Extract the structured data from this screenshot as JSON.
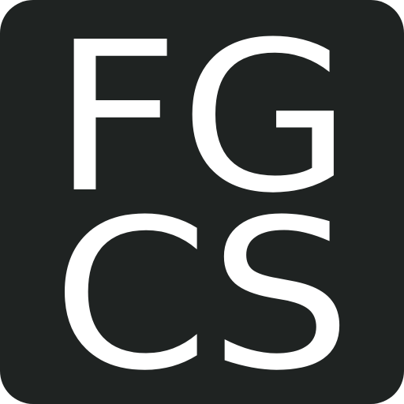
{
  "logo": {
    "lines": [
      "FG",
      "CS"
    ]
  }
}
